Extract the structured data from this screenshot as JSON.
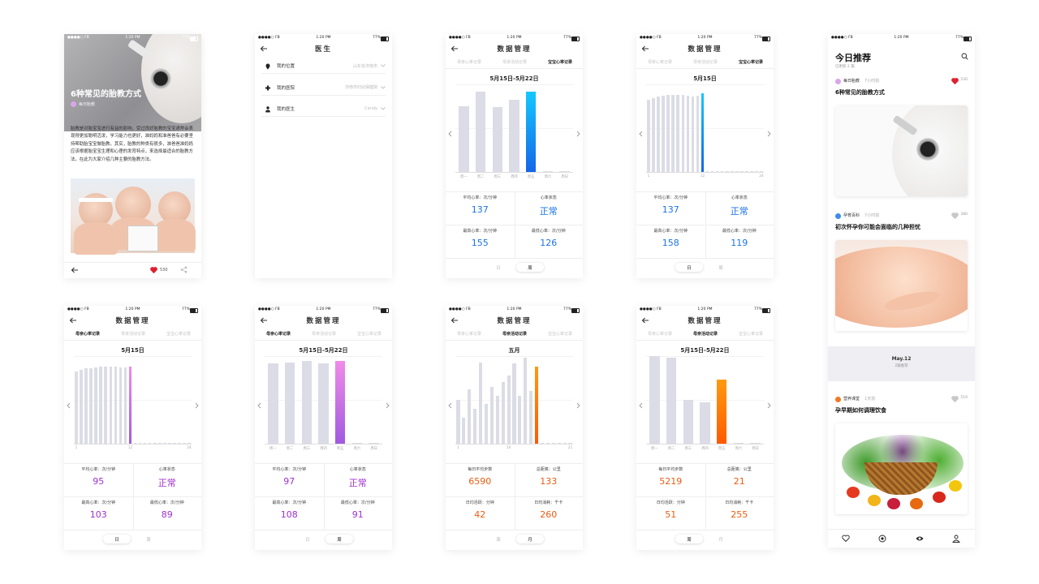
{
  "status": {
    "carrier": "●●●●○ FB",
    "time": "1:20 PM",
    "battery": "77%"
  },
  "article": {
    "title": "6种常见的胎教方式",
    "author": "每日胎教",
    "body": "胎教是对胎宝宝进行有益的影响，受过良好胎教的宝宝通常会表现得更加聪明活泼，学习能力也更好，准妈妈和准爸爸有必要坚持帮助胎宝宝做胎教。其实，胎教的种类有很多，准爸爸准妈妈应该根据胎宝宝生理和心理的发育特点，来选择最适合的胎教方法，在此为大家介绍几种主要的胎教方法。",
    "likes": 530
  },
  "doctor": {
    "title": "医生",
    "rows": [
      {
        "label": "我的位置",
        "value": "山东省济南市"
      },
      {
        "label": "我的医院",
        "value": "济南市妇幼保健院"
      },
      {
        "label": "我的医生",
        "value": "Candy"
      }
    ]
  },
  "data_title": "数据管理",
  "data_tabs": [
    "母亲心率记录",
    "母亲活动记录",
    "宝宝心率记录"
  ],
  "data_screens": [
    {
      "active_tab": 2,
      "date": "5月15日-5月22日",
      "chart": {
        "type": "bar",
        "categories": [
          "周一",
          "周二",
          "周三",
          "周四",
          "周五",
          "周六",
          "周日"
        ],
        "values": [
          75,
          92,
          74,
          82,
          92,
          1,
          1
        ],
        "ylim": [
          0,
          100
        ],
        "highlight": 4,
        "bar_color": "#dcdce6",
        "highlight_colors": [
          "#14c8ff",
          "#1466e8"
        ]
      },
      "value_color": "#1a73e8",
      "stats": [
        {
          "label": "平均心率：次/分钟",
          "value": 137
        },
        {
          "label": "心率状态",
          "value": "正常"
        },
        {
          "label": "最高心率：次/分钟",
          "value": 155
        },
        {
          "label": "最低心率：次/分钟",
          "value": 126
        }
      ],
      "toggle": [
        "日",
        "周"
      ],
      "active_toggle": 1
    },
    {
      "active_tab": 2,
      "date": "5月15日",
      "chart": {
        "type": "bar",
        "categories": [
          "1",
          null,
          null,
          null,
          null,
          null,
          null,
          null,
          null,
          null,
          null,
          "12",
          null,
          null,
          null,
          null,
          null,
          null,
          null,
          null,
          null,
          null,
          null,
          "24"
        ],
        "values": [
          82,
          84,
          86,
          87,
          88,
          88,
          88,
          88,
          87,
          86,
          87,
          90,
          1,
          1,
          1,
          1,
          1,
          1,
          1,
          1,
          1,
          1,
          1,
          1
        ],
        "ylim": [
          0,
          100
        ],
        "highlight": 11,
        "bar_color": "#dcdce6",
        "highlight_colors": [
          "#14c8ff",
          "#1466e8"
        ]
      },
      "value_color": "#1a73e8",
      "stats": [
        {
          "label": "平均心率：次/分钟",
          "value": 137
        },
        {
          "label": "心率状态",
          "value": "正常"
        },
        {
          "label": "最高心率：次/分钟",
          "value": 158
        },
        {
          "label": "最低心率：次/分钟",
          "value": 119
        }
      ],
      "toggle": [
        "日",
        "周"
      ],
      "active_toggle": 0
    },
    {
      "active_tab": 0,
      "date": "5月15日",
      "chart": {
        "type": "bar",
        "categories": [
          "1",
          null,
          null,
          null,
          null,
          null,
          null,
          null,
          null,
          null,
          null,
          "12",
          null,
          null,
          null,
          null,
          null,
          null,
          null,
          null,
          null,
          null,
          null,
          "24"
        ],
        "values": [
          82,
          84,
          86,
          86,
          87,
          88,
          88,
          88,
          88,
          87,
          87,
          88,
          1,
          1,
          1,
          1,
          1,
          1,
          1,
          1,
          1,
          1,
          1,
          1
        ],
        "ylim": [
          0,
          100
        ],
        "highlight": 11,
        "bar_color": "#dcdce6",
        "highlight_colors": [
          "#f08ce8",
          "#a05ae0"
        ]
      },
      "value_color": "#a030d0",
      "stats": [
        {
          "label": "平均心率：次/分钟",
          "value": 95
        },
        {
          "label": "心率状态",
          "value": "正常"
        },
        {
          "label": "最高心率：次/分钟",
          "value": 103
        },
        {
          "label": "最低心率：次/分钟",
          "value": 89
        }
      ],
      "toggle": [
        "日",
        "周"
      ],
      "active_toggle": 0
    },
    {
      "active_tab": 0,
      "date": "5月15日-5月22日",
      "chart": {
        "type": "bar",
        "categories": [
          "周一",
          "周二",
          "周三",
          "周四",
          "周五",
          "周六",
          "周日"
        ],
        "values": [
          92,
          93,
          94,
          92,
          94,
          1,
          1
        ],
        "ylim": [
          0,
          100
        ],
        "highlight": 4,
        "bar_color": "#dcdce6",
        "highlight_colors": [
          "#f08ce8",
          "#a05ae0"
        ]
      },
      "value_color": "#a030d0",
      "stats": [
        {
          "label": "平均心率：次/分钟",
          "value": 97
        },
        {
          "label": "心率状态",
          "value": "正常"
        },
        {
          "label": "最高心率：次/分钟",
          "value": 108
        },
        {
          "label": "最低心率：次/分钟",
          "value": 91
        }
      ],
      "toggle": [
        "日",
        "周"
      ],
      "active_toggle": 1
    },
    {
      "active_tab": 1,
      "date": "五月",
      "chart": {
        "type": "bar",
        "categories": [
          "1",
          null,
          null,
          null,
          null,
          null,
          null,
          null,
          null,
          "10",
          null,
          null,
          null,
          null,
          null,
          null,
          null,
          null,
          null,
          null,
          "21"
        ],
        "values": [
          50,
          30,
          62,
          40,
          93,
          45,
          65,
          55,
          70,
          78,
          92,
          55,
          98,
          60,
          88,
          1,
          1,
          1,
          1,
          1,
          1
        ],
        "ylim": [
          0,
          100
        ],
        "highlight": 14,
        "bar_color": "#dcdce6",
        "highlight_colors": [
          "#ff9a10",
          "#ff5a00"
        ]
      },
      "value_color": "#ee5a10",
      "stats": [
        {
          "label": "每日平均步数",
          "value": 6590
        },
        {
          "label": "总距离：公里",
          "value": 133
        },
        {
          "label": "日均活跃：分钟",
          "value": 42
        },
        {
          "label": "日均消耗：千卡",
          "value": 260
        }
      ],
      "toggle": [
        "周",
        "月"
      ],
      "active_toggle": 1
    },
    {
      "active_tab": 1,
      "date": "5月15日-5月22日",
      "chart": {
        "type": "bar",
        "categories": [
          "周一",
          "周二",
          "周三",
          "周四",
          "周五",
          "周六",
          "周日"
        ],
        "values": [
          100,
          98,
          50,
          47,
          73,
          1,
          1
        ],
        "ylim": [
          0,
          100
        ],
        "highlight": 4,
        "bar_color": "#dcdce6",
        "highlight_colors": [
          "#ff9a10",
          "#ff5a00"
        ]
      },
      "value_color": "#ee5a10",
      "stats": [
        {
          "label": "每日平均步数",
          "value": 5219
        },
        {
          "label": "总距离：公里",
          "value": 21
        },
        {
          "label": "日均活跃：分钟",
          "value": 51
        },
        {
          "label": "日均消耗：千卡",
          "value": 255
        }
      ],
      "toggle": [
        "周",
        "月"
      ],
      "active_toggle": 0
    }
  ],
  "feed": {
    "title": "今日推荐",
    "subtitle": "已更新 2 篇",
    "items": [
      {
        "source": "每日胎教",
        "time": "7小时前",
        "likes": 530,
        "title": "6种常见的胎教方式"
      },
      {
        "source": "孕育百科",
        "time": "7小时前",
        "likes": 380,
        "title": "初次怀孕你可能会面临的几种担忧"
      },
      {
        "source": "营养课堂",
        "time": "1天前",
        "likes": 510,
        "title": "孕早期如何调理饮食"
      }
    ],
    "divider": {
      "date": "May.12",
      "note": "2篇推荐"
    }
  }
}
